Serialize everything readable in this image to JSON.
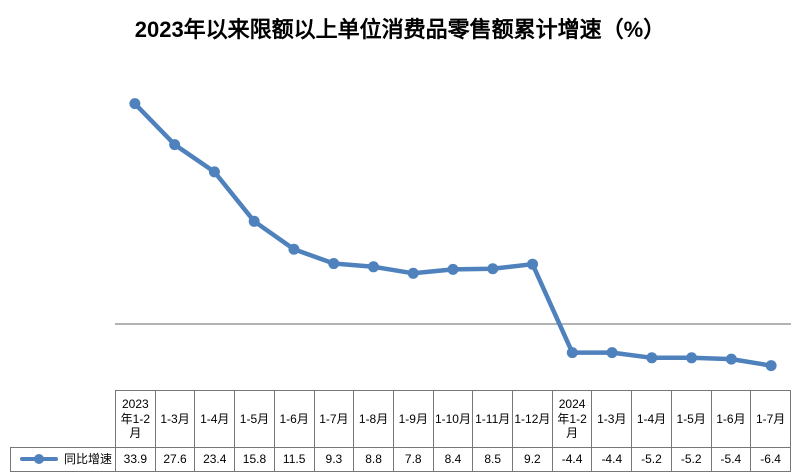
{
  "title": "2023年以来限额以上单位消费品零售额累计增速（%）",
  "legend": {
    "series_label": "同比增速"
  },
  "chart_data": {
    "type": "line",
    "title": "2023年以来限额以上单位消费品零售额累计增速（%）",
    "categories": [
      "2023年1-2月",
      "1-3月",
      "1-4月",
      "1-5月",
      "1-6月",
      "1-7月",
      "1-8月",
      "1-9月",
      "1-10月",
      "1-11月",
      "1-12月",
      "2024年1-2月",
      "1-3月",
      "1-4月",
      "1-5月",
      "1-6月",
      "1-7月"
    ],
    "series": [
      {
        "name": "同比增速",
        "values": [
          33.9,
          27.6,
          23.4,
          15.8,
          11.5,
          9.3,
          8.8,
          7.8,
          8.4,
          8.5,
          9.2,
          -4.4,
          -4.4,
          -5.2,
          -5.2,
          -5.4,
          -6.4
        ]
      }
    ],
    "xlabel": "",
    "ylabel": "",
    "ylim": [
      -10,
      40
    ],
    "grid": false,
    "y_axis_labels_shown": false,
    "data_table_shown": true,
    "legend_position": "data-table-left",
    "line_color": "#4F81BD",
    "axis_color": "#9a9a9a",
    "table_border_color": "#777777",
    "value_decimals": 1
  }
}
